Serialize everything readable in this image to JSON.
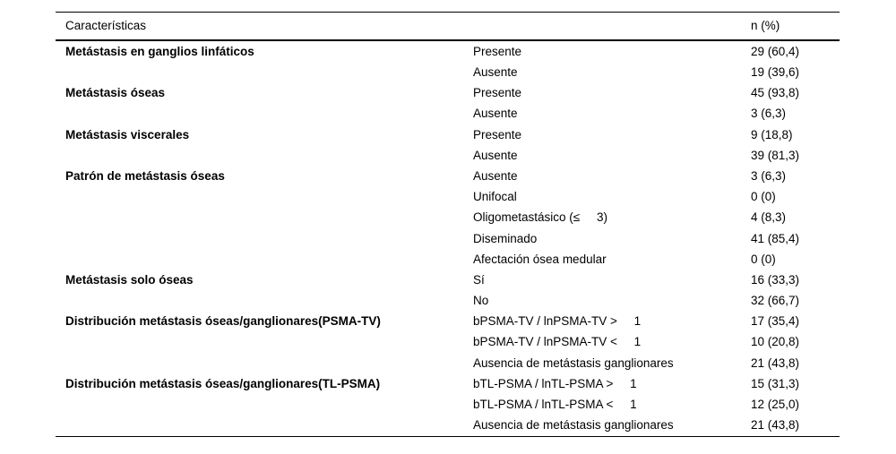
{
  "table": {
    "header": {
      "characteristics": "Características",
      "n_pct": "n (%)"
    },
    "rows": [
      {
        "category": "Metástasis en ganglios linfáticos",
        "subcategory": "Presente",
        "value": "29 (60,4)"
      },
      {
        "category": "",
        "subcategory": "Ausente",
        "value": "19 (39,6)"
      },
      {
        "category": "Metástasis óseas",
        "subcategory": "Presente",
        "value": "45 (93,8)"
      },
      {
        "category": "",
        "subcategory": "Ausente",
        "value": "3 (6,3)"
      },
      {
        "category": "Metástasis viscerales",
        "subcategory": "Presente",
        "value": "9 (18,8)"
      },
      {
        "category": "",
        "subcategory": "Ausente",
        "value": "39 (81,3)"
      },
      {
        "category": "Patrón de metástasis óseas",
        "subcategory": "Ausente",
        "value": "3 (6,3)"
      },
      {
        "category": "",
        "subcategory": "Unifocal",
        "value": "0 (0)"
      },
      {
        "category": "",
        "subcategory": "Oligometastásico (≤     3)",
        "value": "4 (8,3)"
      },
      {
        "category": "",
        "subcategory": "Diseminado",
        "value": "41 (85,4)"
      },
      {
        "category": "",
        "subcategory": "Afectación ósea medular",
        "value": "0 (0)"
      },
      {
        "category": "Metástasis solo óseas",
        "subcategory": "Sí",
        "value": "16 (33,3)"
      },
      {
        "category": "",
        "subcategory": "No",
        "value": "32 (66,7)"
      },
      {
        "category": "Distribución metástasis óseas/ganglionares(PSMA-TV)",
        "subcategory": "bPSMA-TV / lnPSMA-TV >     1",
        "value": "17 (35,4)"
      },
      {
        "category": "",
        "subcategory": "bPSMA-TV / lnPSMA-TV <     1",
        "value": "10 (20,8)"
      },
      {
        "category": "",
        "subcategory": "Ausencia de metástasis ganglionares",
        "value": "21 (43,8)"
      },
      {
        "category": "Distribución metástasis óseas/ganglionares(TL-PSMA)",
        "subcategory": "bTL-PSMA / lnTL-PSMA >     1",
        "value": "15 (31,3)"
      },
      {
        "category": "",
        "subcategory": "bTL-PSMA / lnTL-PSMA <     1",
        "value": "12 (25,0)"
      },
      {
        "category": "",
        "subcategory": "Ausencia de metástasis ganglionares",
        "value": "21 (43,8)"
      }
    ]
  },
  "chart_data": {
    "type": "table",
    "title": "",
    "columns": [
      "Características",
      "",
      "n (%)"
    ],
    "groups": [
      {
        "name": "Metástasis en ganglios linfáticos",
        "items": [
          [
            "Presente",
            "29 (60,4)"
          ],
          [
            "Ausente",
            "19 (39,6)"
          ]
        ]
      },
      {
        "name": "Metástasis óseas",
        "items": [
          [
            "Presente",
            "45 (93,8)"
          ],
          [
            "Ausente",
            "3 (6,3)"
          ]
        ]
      },
      {
        "name": "Metástasis viscerales",
        "items": [
          [
            "Presente",
            "9 (18,8)"
          ],
          [
            "Ausente",
            "39 (81,3)"
          ]
        ]
      },
      {
        "name": "Patrón de metástasis óseas",
        "items": [
          [
            "Ausente",
            "3 (6,3)"
          ],
          [
            "Unifocal",
            "0 (0)"
          ],
          [
            "Oligometastásico (≤ 3)",
            "4 (8,3)"
          ],
          [
            "Diseminado",
            "41 (85,4)"
          ],
          [
            "Afectación ósea medular",
            "0 (0)"
          ]
        ]
      },
      {
        "name": "Metástasis solo óseas",
        "items": [
          [
            "Sí",
            "16 (33,3)"
          ],
          [
            "No",
            "32 (66,7)"
          ]
        ]
      },
      {
        "name": "Distribución metástasis óseas/ganglionares(PSMA-TV)",
        "items": [
          [
            "bPSMA-TV / lnPSMA-TV > 1",
            "17 (35,4)"
          ],
          [
            "bPSMA-TV / lnPSMA-TV < 1",
            "10 (20,8)"
          ],
          [
            "Ausencia de metástasis ganglionares",
            "21 (43,8)"
          ]
        ]
      },
      {
        "name": "Distribución metástasis óseas/ganglionares(TL-PSMA)",
        "items": [
          [
            "bTL-PSMA / lnTL-PSMA > 1",
            "15 (31,3)"
          ],
          [
            "bTL-PSMA / lnTL-PSMA < 1",
            "12 (25,0)"
          ],
          [
            "Ausencia de metástasis ganglionares",
            "21 (43,8)"
          ]
        ]
      }
    ],
    "text_color": "#000000",
    "rule_color": "#000000",
    "background": "#ffffff"
  }
}
